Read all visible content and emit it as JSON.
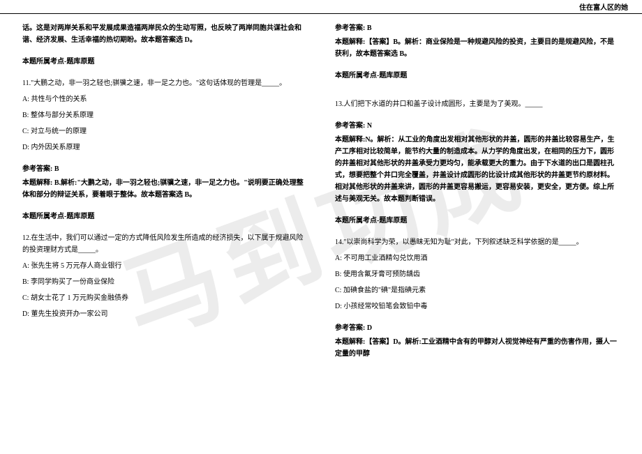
{
  "header": {
    "right_title": "住在富人区的她"
  },
  "watermark": "马到功成",
  "left": {
    "q10_tail": "话。这是对两岸关系和平发展成果造福两岸民众的生动写照，也反映了两岸同胞共谋社会和谐、经济发展、生活幸福的热切期盼。故本题答案选 D。",
    "q10_points": "本题所属考点-题库原题",
    "q11_stem": "11.\"大鹏之动，非一羽之轻也;骐骥之速，非一足之力也。\"这句话体现的哲理是_____。",
    "q11_a": "A: 共性与个性的关系",
    "q11_b": "B: 整体与部分关系原理",
    "q11_c": "C: 对立与统一的原理",
    "q11_d": "D: 内外因关系原理",
    "q11_ans_label": "参考答案: B",
    "q11_ans_exp": "本题解释: B.解析:\"大鹏之动，非一羽之轻也;骐骥之速，非一足之力也。\"说明要正确处理整体和部分的辩证关系，要着眼于整体。故本题答案选 B。",
    "q11_points": "本题所属考点-题库原题",
    "q12_stem": "12.在生活中，我们可以通过一定的方式降低风险发生所造成的经济损失，以下属于规避风险的投资理财方式是_____。",
    "q12_a": "A: 张先生将 5 万元存人商业银行",
    "q12_b": "B: 李同学购买了一份商业保险",
    "q12_c": "C: 胡女士花了 1 万元购买金融债券",
    "q12_d": "D: 董先生投资开办一家公司"
  },
  "right": {
    "q12_ans_label": "参考答案: B",
    "q12_ans_exp": "本题解释:【答案】B。解析：商业保险是一种规避风险的投资，主要目的是规避风险，不是获利，故本题答案选 B。",
    "q12_points": "本题所属考点-题库原题",
    "q13_stem": "13.人们把下水道的井口和盖子设计成圆形，主要是为了美观。_____",
    "q13_ans_label": "参考答案: N",
    "q13_ans_exp": "本题解释:N。解析：从工业的角度出发相对其他形状的井盖，圆形的井盖比较容易生产，生产工序相对比较简单，能节约大量的制造成本。从力学的角度出发，在相同的压力下，圆形的井盖相对其他形状的井盖承受力更均匀，能承载更大的重力。由于下水道的出口是圆柱孔式，想要把整个井口完全覆盖，井盖设计成圆形的比设计成其他形状的井盖更节约原材料。相对其他形状的井盖来讲，圆形的井盖更容易搬运，更容易安装，更安全，更方便。综上所述与美观无关。故本题判断错误。",
    "q13_points": "本题所属考点-题库原题",
    "q14_stem": "14.\"以崇尚科学为荣，以愚昧无知为耻\"对此，下列叙述缺乏科学依据的是_____。",
    "q14_a": "A: 不可用工业酒精勾兑饮用酒",
    "q14_b": "B: 使用含氟牙膏可预防龋齿",
    "q14_c": "C: 加碘食盐的\"碘\"是指碘元素",
    "q14_d": "D: 小孩经常咬铅笔会致铅中毒",
    "q14_ans_label": "参考答案: D",
    "q14_ans_exp": "本题解释:【答案】D。解析:工业酒精中含有的甲醇对人视觉神经有严重的伤害作用，摄人一定量的甲醇"
  }
}
